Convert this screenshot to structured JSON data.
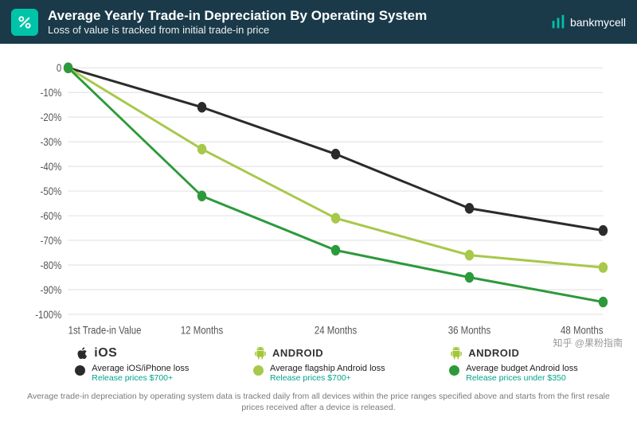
{
  "header": {
    "title": "Average Yearly Trade-in Depreciation By Operating System",
    "subtitle": "Loss of value is tracked from initial trade-in price",
    "brand": "bankmycell",
    "header_bg": "#1a3a4a",
    "icon_bg": "#00c4a7"
  },
  "chart": {
    "type": "line",
    "x_labels": [
      "1st Trade-in Value",
      "12 Months",
      "24 Months",
      "36 Months",
      "48 Months"
    ],
    "y_ticks": [
      0,
      -10,
      -20,
      -30,
      -40,
      -50,
      -60,
      -70,
      -80,
      -90,
      -100
    ],
    "y_tick_labels": [
      "0",
      "-10%",
      "-20%",
      "-30%",
      "-40%",
      "-50%",
      "-60%",
      "-70%",
      "-80%",
      "-90%",
      "-100%"
    ],
    "ylim": [
      -100,
      0
    ],
    "grid_color": "#e4e4e4",
    "axis_color": "#cccccc",
    "tick_font_size": 11,
    "tick_color": "#555555",
    "marker_radius": 5.5,
    "line_width": 2.5,
    "series": [
      {
        "key": "ios",
        "color": "#2b2b2b",
        "values": [
          0,
          -16,
          -35,
          -57,
          -66
        ]
      },
      {
        "key": "flagship",
        "color": "#a8c84a",
        "values": [
          0,
          -33,
          -61,
          -76,
          -81
        ]
      },
      {
        "key": "budget",
        "color": "#2c9a3a",
        "values": [
          0,
          -52,
          -74,
          -85,
          -95
        ]
      }
    ]
  },
  "legend": {
    "items": [
      {
        "os_label": "iOS",
        "os_icon": "apple",
        "os_icon_color": "#2b2b2b",
        "dot_color": "#2b2b2b",
        "desc_main": "Average iOS/iPhone loss",
        "desc_sub": "Release prices $700+"
      },
      {
        "os_label": "ANDROID",
        "os_icon": "android",
        "os_icon_color": "#a4c639",
        "dot_color": "#a8c84a",
        "desc_main": "Average flagship Android loss",
        "desc_sub": "Release prices $700+"
      },
      {
        "os_label": "ANDROID",
        "os_icon": "android",
        "os_icon_color": "#a4c639",
        "dot_color": "#2c9a3a",
        "desc_main": "Average budget Android loss",
        "desc_sub": "Release prices under $350"
      }
    ],
    "sub_color": "#00a58a"
  },
  "footnote": "Average trade-in depreciation by operating system data is tracked daily from all devices within the price ranges specified above and starts from the first resale prices received after a device is released.",
  "watermark": "知乎 @果粉指南"
}
